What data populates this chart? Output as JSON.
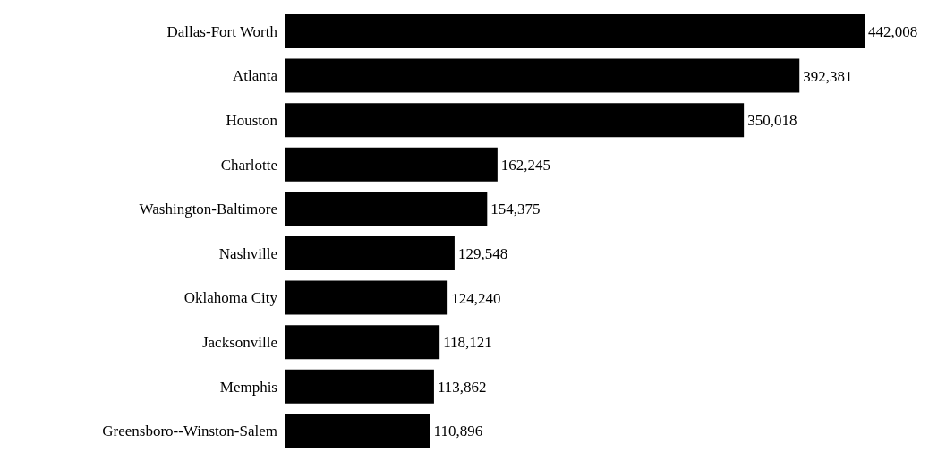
{
  "chart_data": {
    "type": "bar",
    "orientation": "horizontal",
    "categories": [
      "Dallas-Fort Worth",
      "Atlanta",
      "Houston",
      "Charlotte",
      "Washington-Baltimore",
      "Nashville",
      "Oklahoma City",
      "Jacksonville",
      "Memphis",
      "Greensboro--Winston-Salem"
    ],
    "values": [
      442008,
      392381,
      350018,
      162245,
      154375,
      129548,
      124240,
      118121,
      113862,
      110896
    ],
    "value_labels": [
      "442,008",
      "392,381",
      "350,018",
      "162,245",
      "154,375",
      "129,548",
      "124,240",
      "118,121",
      "113,862",
      "110,896"
    ],
    "color": "#000000"
  }
}
